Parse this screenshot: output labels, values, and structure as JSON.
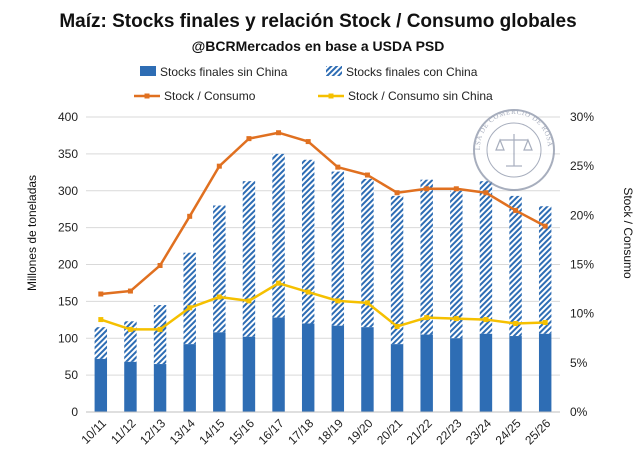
{
  "chart_data": {
    "type": "bar",
    "title": "Maíz: Stocks finales y relación Stock / Consumo globales",
    "subtitle": "@BCRMercados en base a USDA PSD",
    "ylabel": "Millones de toneladas",
    "y2label": "Stock / Consumo",
    "ylim": [
      0,
      400
    ],
    "y2lim": [
      0,
      30
    ],
    "yticks": [
      "0",
      "50",
      "100",
      "150",
      "200",
      "250",
      "300",
      "350",
      "400"
    ],
    "y2ticks": [
      "0%",
      "5%",
      "10%",
      "15%",
      "20%",
      "25%",
      "30%"
    ],
    "grid": true,
    "legend_position": "top",
    "categories": [
      "10/11",
      "11/12",
      "12/13",
      "13/14",
      "14/15",
      "15/16",
      "16/17",
      "17/18",
      "18/19",
      "19/20",
      "20/21",
      "21/22",
      "22/23",
      "23/24",
      "24/25",
      "25/26"
    ],
    "series": [
      {
        "name": "Stocks finales sin China",
        "type": "bar",
        "axis": "left",
        "color": "#2e6db4",
        "values": [
          72,
          68,
          65,
          92,
          108,
          102,
          128,
          120,
          117,
          115,
          92,
          105,
          100,
          106,
          103,
          106
        ]
      },
      {
        "name": "Stocks finales con China",
        "type": "bar-hatched",
        "axis": "left",
        "color": "#2e6db4",
        "values": [
          115,
          123,
          145,
          216,
          280,
          313,
          350,
          342,
          326,
          316,
          293,
          315,
          300,
          313,
          293,
          279
        ]
      },
      {
        "name": "Stock / Consumo",
        "type": "line",
        "axis": "right",
        "color": "#e07020",
        "values": [
          12.0,
          12.3,
          14.9,
          19.9,
          25.0,
          27.8,
          28.4,
          27.5,
          24.9,
          24.1,
          22.3,
          22.7,
          22.7,
          22.3,
          20.5,
          18.9
        ]
      },
      {
        "name": "Stock / Consumo sin China",
        "type": "line",
        "axis": "right",
        "color": "#f5c000",
        "values": [
          9.4,
          8.4,
          8.4,
          10.6,
          11.7,
          11.3,
          13.1,
          12.2,
          11.3,
          11.1,
          8.7,
          9.6,
          9.5,
          9.4,
          9.0,
          9.1
        ]
      }
    ]
  },
  "seal": {
    "text": "BOLSA DE COMERCIO DE ROSARIO",
    "color": "#8a93a8"
  }
}
